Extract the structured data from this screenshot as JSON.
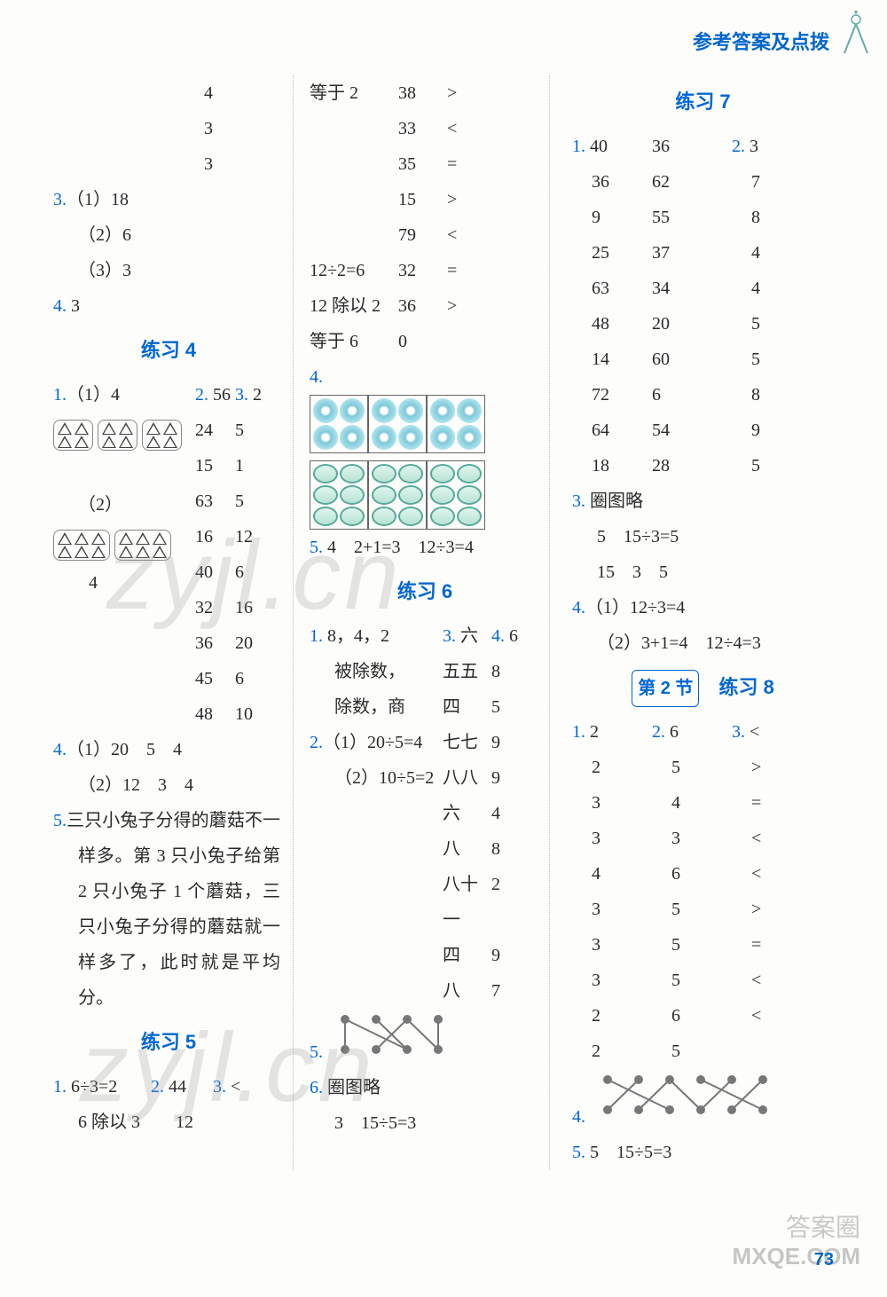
{
  "header": {
    "title": "参考答案及点拨"
  },
  "page_number": "73",
  "watermarks": {
    "wm1": "zyjl.cn",
    "wm2": "zyjl.cn",
    "wm3": "MXQE.COM",
    "wm4": "答案圈"
  },
  "col1": {
    "top_numbers": [
      "4",
      "3",
      "3"
    ],
    "q3": {
      "label": "3.",
      "items": [
        [
          "（1）",
          "18"
        ],
        [
          "（2）",
          "6"
        ],
        [
          "（3）",
          "3"
        ]
      ]
    },
    "q4": {
      "label": "4.",
      "value": "3"
    },
    "ex4_heading": "练习 4",
    "ex4_q1_label": "1.",
    "ex4_q1_1": "（1）4",
    "ex4_q1_2_label": "（2）",
    "ex4_q1_2_val": "4",
    "ex4_colA_label": "2.",
    "ex4_colB_label": "3.",
    "ex4_tableA": [
      "56",
      "24",
      "15",
      "63",
      "16",
      "40",
      "32",
      "36",
      "45",
      "48"
    ],
    "ex4_tableB": [
      "2",
      "5",
      "1",
      "5",
      "12",
      "6",
      "16",
      "20",
      "6",
      "10"
    ],
    "ex4_q4": {
      "label": "4.",
      "a": "（1）20　5　4",
      "b": "（2）12　3　4"
    },
    "ex4_q5": {
      "label": "5.",
      "text": "三只小兔子分得的蘑菇不一样多。第 3 只小兔子给第 2 只小兔子 1 个蘑菇，三只小兔子分得的蘑菇就一样多了，此时就是平均分。"
    },
    "ex5_heading": "练习 5",
    "ex5_q1_label": "1.",
    "ex5_q1_a": "6÷3=2",
    "ex5_q1_b": "6 除以 3",
    "ex5_q2_label": "2.",
    "ex5_q2_a": "44",
    "ex5_q2_b": "12",
    "ex5_q3_label": "3.",
    "ex5_q3_a": "<"
  },
  "col2": {
    "top_left": [
      "等于 2",
      "",
      "",
      "",
      "",
      "12÷2=6",
      "12 除以 2",
      "等于 6"
    ],
    "top_mid": [
      "38",
      "33",
      "35",
      "15",
      "79",
      "32",
      "36",
      "0"
    ],
    "top_right": [
      ">",
      "<",
      "=",
      ">",
      "<",
      "=",
      ">",
      ""
    ],
    "q4_label": "4.",
    "q5": {
      "label": "5.",
      "text": "4　2+1=3　12÷3=4"
    },
    "ex6_heading": "练习 6",
    "ex6_q1_label": "1.",
    "ex6_q1_a": "8，4，2",
    "ex6_q1_b": "被除数，",
    "ex6_q1_c": "除数，商",
    "ex6_q2_label": "2.",
    "ex6_q2_a": "（1）20÷5=4",
    "ex6_q2_b": "（2）10÷5=2",
    "ex6_q3_label": "3.",
    "ex6_q4_label": "4.",
    "ex6_colA": [
      "六",
      "五五",
      "四",
      "七七",
      "八八",
      "六",
      "八",
      "八十一",
      "四",
      "八"
    ],
    "ex6_colB": [
      "6",
      "8",
      "5",
      "9",
      "9",
      "4",
      "8",
      "2",
      "9",
      "7"
    ],
    "ex6_q5_label": "5.",
    "ex6_q6_label": "6.",
    "ex6_q6_a": "圈图略",
    "ex6_q6_b": "3　15÷5=3",
    "matching1": {
      "top_x": [
        20,
        55,
        90,
        125
      ],
      "bot_x": [
        20,
        55,
        90,
        125
      ],
      "edges": [
        [
          0,
          0
        ],
        [
          0,
          2
        ],
        [
          1,
          2
        ],
        [
          2,
          1
        ],
        [
          2,
          3
        ],
        [
          3,
          3
        ]
      ],
      "color": "#777777"
    }
  },
  "col3": {
    "ex7_heading": "练习 7",
    "ex7_q1_label": "1.",
    "ex7_q2_label": "2.",
    "ex7_colA": [
      "40",
      "36",
      "9",
      "25",
      "63",
      "48",
      "14",
      "72",
      "64",
      "18"
    ],
    "ex7_colB": [
      "36",
      "62",
      "55",
      "37",
      "34",
      "20",
      "60",
      "6",
      "54",
      "28"
    ],
    "ex7_colC": [
      "3",
      "7",
      "8",
      "4",
      "4",
      "5",
      "5",
      "8",
      "9",
      "5"
    ],
    "ex7_q3_label": "3.",
    "ex7_q3_a": "圈图略",
    "ex7_q3_b": "5　15÷3=5",
    "ex7_q3_c": "15　3　5",
    "ex7_q4_label": "4.",
    "ex7_q4_a": "（1）12÷3=4",
    "ex7_q4_b": "（2）3+1=4　12÷4=3",
    "sec2_badge": "第 2 节",
    "ex8_heading": "练习 8",
    "ex8_q1_label": "1.",
    "ex8_q2_label": "2.",
    "ex8_q3_label": "3.",
    "ex8_colA": [
      "2",
      "2",
      "3",
      "3",
      "4",
      "3",
      "3",
      "3",
      "2",
      "2"
    ],
    "ex8_colB": [
      "6",
      "5",
      "4",
      "3",
      "6",
      "5",
      "5",
      "5",
      "6",
      "5"
    ],
    "ex8_colC": [
      "<",
      ">",
      "=",
      "<",
      "<",
      ">",
      "=",
      "<",
      "<",
      ""
    ],
    "ex8_q4_label": "4.",
    "matching2": {
      "top_x": [
        20,
        55,
        90,
        125,
        160,
        195
      ],
      "bot_x": [
        20,
        55,
        90,
        125,
        160,
        195
      ],
      "edges": [
        [
          0,
          2
        ],
        [
          1,
          0
        ],
        [
          2,
          1
        ],
        [
          2,
          3
        ],
        [
          3,
          5
        ],
        [
          4,
          3
        ],
        [
          5,
          4
        ]
      ],
      "color": "#777777"
    },
    "ex8_q5_label": "5.",
    "ex8_q5_a": "5　15÷5=3"
  }
}
